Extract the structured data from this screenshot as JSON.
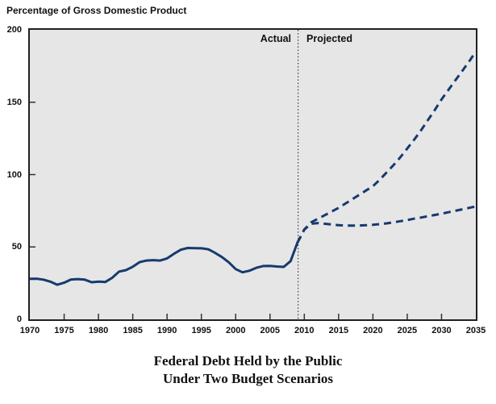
{
  "header": {
    "axis_unit_label": "Percentage of Gross Domestic Product"
  },
  "annotations": {
    "actual": "Actual",
    "projected": "Projected"
  },
  "figure_title": {
    "line1": "Federal Debt Held by the Public",
    "line2": "Under Two Budget Scenarios"
  },
  "colors": {
    "line": "#163a6e",
    "plot_bg": "#e6e6e6",
    "border": "#202020"
  },
  "chart_data": {
    "type": "line",
    "title": "Federal Debt Held by the Public Under Two Budget Scenarios",
    "ylabel": "Percentage of Gross Domestic Product",
    "xlabel": "",
    "xlim": [
      1970,
      2035
    ],
    "ylim": [
      0,
      200
    ],
    "x_ticks": [
      1970,
      1975,
      1980,
      1985,
      1990,
      1995,
      2000,
      2005,
      2010,
      2015,
      2020,
      2025,
      2030,
      2035
    ],
    "y_ticks": [
      0,
      50,
      100,
      150,
      200
    ],
    "grid": false,
    "legend": "none",
    "divider_year": 2009.1,
    "series": [
      {
        "name": "actual",
        "style": "solid",
        "x": [
          1970,
          1971,
          1972,
          1973,
          1974,
          1975,
          1976,
          1977,
          1978,
          1979,
          1980,
          1981,
          1982,
          1983,
          1984,
          1985,
          1986,
          1987,
          1988,
          1989,
          1990,
          1991,
          1992,
          1993,
          1994,
          1995,
          1996,
          1997,
          1998,
          1999,
          2000,
          2001,
          2002,
          2003,
          2004,
          2005,
          2006,
          2007,
          2008,
          2009
        ],
        "values": [
          28.0,
          28.1,
          27.4,
          26.0,
          23.9,
          25.3,
          27.5,
          27.8,
          27.4,
          25.6,
          26.1,
          25.8,
          28.7,
          33.0,
          34.0,
          36.3,
          39.5,
          40.6,
          40.9,
          40.6,
          42.1,
          45.3,
          48.1,
          49.3,
          49.2,
          49.1,
          48.4,
          45.9,
          43.0,
          39.4,
          34.7,
          32.5,
          33.6,
          35.6,
          36.8,
          36.9,
          36.5,
          36.2,
          40.2,
          53.0
        ]
      },
      {
        "name": "projected-upper-scenario",
        "style": "dashed",
        "x": [
          2009,
          2010,
          2011,
          2012,
          2013,
          2014,
          2015,
          2016,
          2017,
          2018,
          2019,
          2020,
          2021,
          2022,
          2023,
          2024,
          2025,
          2026,
          2027,
          2028,
          2029,
          2030,
          2031,
          2032,
          2033,
          2034,
          2035
        ],
        "values": [
          53,
          62,
          67,
          69.5,
          72,
          74.5,
          77,
          80,
          83,
          86,
          89,
          92,
          96.5,
          101.5,
          106.5,
          112,
          118,
          124,
          130.5,
          137.5,
          144.5,
          152,
          158.5,
          165,
          171.5,
          178,
          185
        ]
      },
      {
        "name": "projected-lower-scenario",
        "style": "dashed",
        "x": [
          2009,
          2010,
          2011,
          2012,
          2013,
          2014,
          2015,
          2016,
          2017,
          2018,
          2019,
          2020,
          2021,
          2022,
          2023,
          2024,
          2025,
          2026,
          2027,
          2028,
          2029,
          2030,
          2031,
          2032,
          2033,
          2034,
          2035
        ],
        "values": [
          53,
          62,
          66,
          66.5,
          66,
          65.5,
          65,
          64.8,
          64.8,
          64.8,
          65,
          65.3,
          65.8,
          66.3,
          67,
          67.8,
          68.6,
          69.5,
          70.3,
          71.2,
          72.1,
          73,
          74,
          75,
          76,
          77,
          78
        ]
      }
    ]
  }
}
